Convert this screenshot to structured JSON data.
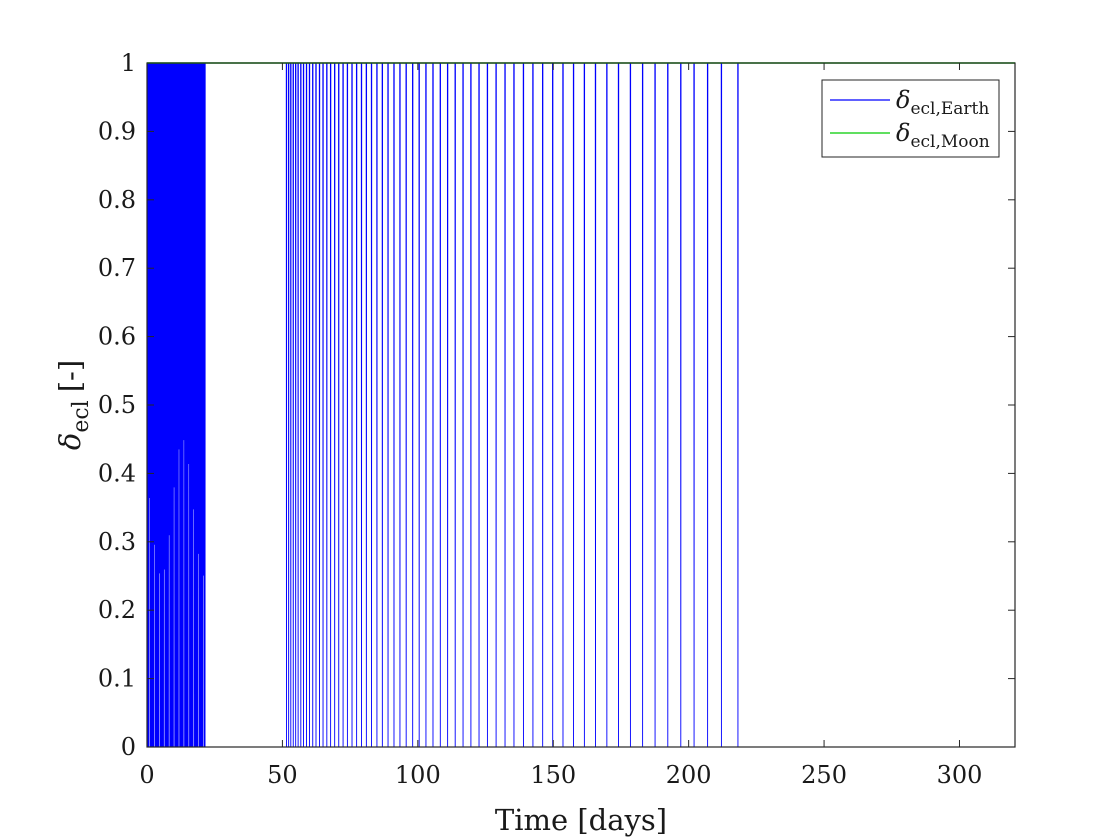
{
  "chart_data": {
    "type": "line",
    "title": "",
    "xlabel": "Time [days]",
    "ylabel": "[-]",
    "ylabel_symbol": "δ",
    "ylabel_subscript": "ecl",
    "xlim": [
      0,
      320.5
    ],
    "ylim": [
      0,
      1
    ],
    "xticks": [
      0,
      50,
      100,
      150,
      200,
      250,
      300
    ],
    "xtick_labels": [
      "0",
      "50",
      "100",
      "150",
      "200",
      "250",
      "300"
    ],
    "yticks": [
      0,
      0.1,
      0.2,
      0.3,
      0.4,
      0.5,
      0.6,
      0.7,
      0.8,
      0.9,
      1
    ],
    "ytick_labels": [
      "0",
      "0.1",
      "0.2",
      "0.3",
      "0.4",
      "0.5",
      "0.6",
      "0.7",
      "0.8",
      "0.9",
      "1"
    ],
    "grid": false,
    "box": true,
    "legend_position": "top-right",
    "series": [
      {
        "name": "δecl,Earth",
        "legend_symbol": "δ",
        "legend_subscript": "ecl,Earth",
        "color": "#0000ff",
        "description": "eclipse factor drops from 1 to 0 in narrow dips; dense oscillation 0–21.5 days, regular dips 51–218 days, constant 1 thereafter",
        "dense_interval": [
          0,
          21.5
        ],
        "dip_times": [
          51.5,
          52.3,
          53.1,
          54.0,
          54.9,
          55.8,
          56.8,
          57.8,
          58.9,
          60.0,
          61.2,
          62.4,
          63.7,
          65.0,
          66.4,
          67.8,
          69.3,
          70.8,
          72.4,
          74.0,
          75.7,
          77.4,
          79.2,
          81.0,
          82.9,
          84.9,
          86.9,
          89.0,
          91.2,
          93.4,
          95.7,
          98.1,
          100.5,
          103.0,
          105.6,
          108.3,
          111.0,
          113.8,
          116.7,
          119.6,
          122.6,
          125.7,
          128.9,
          132.2,
          135.5,
          139.0,
          142.5,
          146.1,
          149.8,
          153.6,
          157.5,
          161.5,
          165.6,
          169.8,
          174.1,
          178.5,
          183.0,
          187.6,
          192.3,
          197.1,
          202.0,
          207.0,
          212.1,
          218.2
        ]
      },
      {
        "name": "δecl,Moon",
        "legend_symbol": "δ",
        "legend_subscript": "ecl,Moon",
        "color": "#00cc00",
        "x": [
          0,
          320.5
        ],
        "y": [
          1,
          1
        ]
      }
    ]
  }
}
